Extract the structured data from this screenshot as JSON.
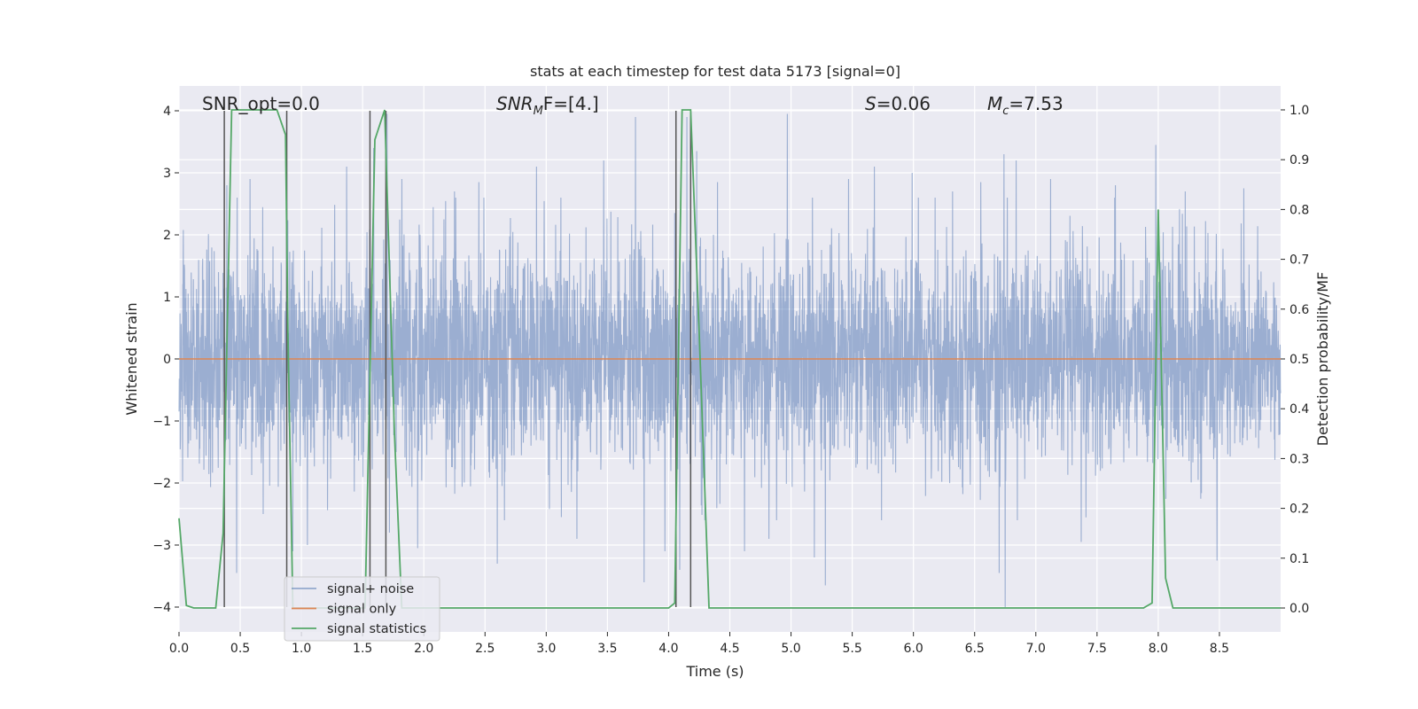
{
  "chart_data": {
    "type": "line",
    "title": "stats at each timestep for test data 5173 [signal=0]",
    "xlabel": "Time (s)",
    "ylabel": "Whitened strain",
    "y2label": "Detection probability/MF",
    "xlim": [
      0,
      9
    ],
    "ylim": [
      -4.4,
      4.4
    ],
    "y2lim": [
      -0.048,
      1.048
    ],
    "xticks": [
      "0.0",
      "0.5",
      "1.0",
      "1.5",
      "2.0",
      "2.5",
      "3.0",
      "3.5",
      "4.0",
      "4.5",
      "5.0",
      "5.5",
      "6.0",
      "6.5",
      "7.0",
      "7.5",
      "8.0",
      "8.5"
    ],
    "xtick_values": [
      0,
      0.5,
      1,
      1.5,
      2,
      2.5,
      3,
      3.5,
      4,
      4.5,
      5,
      5.5,
      6,
      6.5,
      7,
      7.5,
      8,
      8.5
    ],
    "yticks": [
      "−4",
      "−3",
      "−2",
      "−1",
      "0",
      "1",
      "2",
      "3",
      "4"
    ],
    "ytick_values": [
      -4,
      -3,
      -2,
      -1,
      0,
      1,
      2,
      3,
      4
    ],
    "y2ticks": [
      "0.0",
      "0.1",
      "0.2",
      "0.3",
      "0.4",
      "0.5",
      "0.6",
      "0.7",
      "0.8",
      "0.9",
      "1.0"
    ],
    "y2tick_values": [
      0,
      0.1,
      0.2,
      0.3,
      0.4,
      0.5,
      0.6,
      0.7,
      0.8,
      0.9,
      1.0
    ],
    "grid": true,
    "legend_position": "lower-left",
    "annotations": {
      "snr_opt": "SNR_opt=0.0",
      "snr_mf": "SNR",
      "snr_mf_sub": "M",
      "snr_mf_rest": "F=[4.]",
      "s_label": "S",
      "s_value": "=0.06",
      "mc_label": "M",
      "mc_sub": "c",
      "mc_value": "=7.53"
    },
    "series": [
      {
        "name": "signal+ noise",
        "color": "#4c72b0",
        "axis": "left",
        "description_free_noise": true,
        "sample_rate_hz": 512,
        "spikes": [
          {
            "x": 0.39,
            "y": 2.8
          },
          {
            "x": 0.47,
            "y": -3.45
          },
          {
            "x": 0.58,
            "y": 2.9
          },
          {
            "x": 0.88,
            "y": 3.95
          },
          {
            "x": 0.93,
            "y": -3.1
          },
          {
            "x": 1.05,
            "y": -3.0
          },
          {
            "x": 1.37,
            "y": 3.1
          },
          {
            "x": 1.59,
            "y": 3.4
          },
          {
            "x": 1.7,
            "y": 3.95
          },
          {
            "x": 1.72,
            "y": -2.8
          },
          {
            "x": 1.82,
            "y": 2.9
          },
          {
            "x": 1.95,
            "y": -3.05
          },
          {
            "x": 2.25,
            "y": 2.7
          },
          {
            "x": 2.45,
            "y": 2.85
          },
          {
            "x": 2.6,
            "y": -3.3
          },
          {
            "x": 2.92,
            "y": 3.1
          },
          {
            "x": 3.25,
            "y": -2.9
          },
          {
            "x": 3.47,
            "y": 3.2
          },
          {
            "x": 3.73,
            "y": 3.9
          },
          {
            "x": 3.8,
            "y": -3.6
          },
          {
            "x": 3.97,
            "y": -3.1
          },
          {
            "x": 4.09,
            "y": -3.4
          },
          {
            "x": 4.15,
            "y": 3.9
          },
          {
            "x": 4.23,
            "y": 3.35
          },
          {
            "x": 4.4,
            "y": 2.85
          },
          {
            "x": 4.62,
            "y": -3.1
          },
          {
            "x": 4.82,
            "y": -2.9
          },
          {
            "x": 4.97,
            "y": 3.95
          },
          {
            "x": 5.19,
            "y": -3.2
          },
          {
            "x": 5.28,
            "y": -3.65
          },
          {
            "x": 5.47,
            "y": 2.9
          },
          {
            "x": 5.68,
            "y": 3.1
          },
          {
            "x": 5.99,
            "y": 3.0
          },
          {
            "x": 6.32,
            "y": 2.7
          },
          {
            "x": 6.55,
            "y": 2.85
          },
          {
            "x": 6.7,
            "y": -3.45
          },
          {
            "x": 6.74,
            "y": 3.3
          },
          {
            "x": 6.75,
            "y": -4.0
          },
          {
            "x": 6.84,
            "y": 3.2
          },
          {
            "x": 7.12,
            "y": 2.9
          },
          {
            "x": 7.37,
            "y": -2.95
          },
          {
            "x": 7.65,
            "y": 2.8
          },
          {
            "x": 7.98,
            "y": 3.45
          },
          {
            "x": 8.22,
            "y": 2.7
          },
          {
            "x": 8.48,
            "y": -3.25
          },
          {
            "x": 8.7,
            "y": 2.75
          }
        ]
      },
      {
        "name": "signal only",
        "color": "#dd8452",
        "axis": "left",
        "x": [
          0,
          9
        ],
        "y": [
          0,
          0
        ]
      },
      {
        "name": "signal statistics",
        "color": "#55a868",
        "axis": "right",
        "x": [
          0,
          0.06,
          0.12,
          0.3,
          0.36,
          0.43,
          0.47,
          0.8,
          0.87,
          0.89,
          0.93,
          1.52,
          1.6,
          1.68,
          1.76,
          1.82,
          2.0,
          3.0,
          4.0,
          4.05,
          4.11,
          4.18,
          4.25,
          4.33,
          5.0,
          6.0,
          7.0,
          7.88,
          7.95,
          8.0,
          8.06,
          8.12,
          8.5,
          9.0
        ],
        "y": [
          0.18,
          0.005,
          0.0,
          0.0,
          0.15,
          1.0,
          1.0,
          1.0,
          0.95,
          0.55,
          0.0,
          0.0,
          0.94,
          1.0,
          0.35,
          0.0,
          0.0,
          0.0,
          0.0,
          0.01,
          1.0,
          1.0,
          0.55,
          0.0,
          0.0,
          0.0,
          0.0,
          0.0,
          0.01,
          0.8,
          0.06,
          0.0,
          0.0,
          0.0
        ]
      }
    ],
    "vlines": [
      0.37,
      0.88,
      1.56,
      1.69,
      4.06,
      4.18
    ],
    "vline_ymin": -4.0,
    "vline_ymax": 4.0,
    "vline_color": "#555555"
  }
}
